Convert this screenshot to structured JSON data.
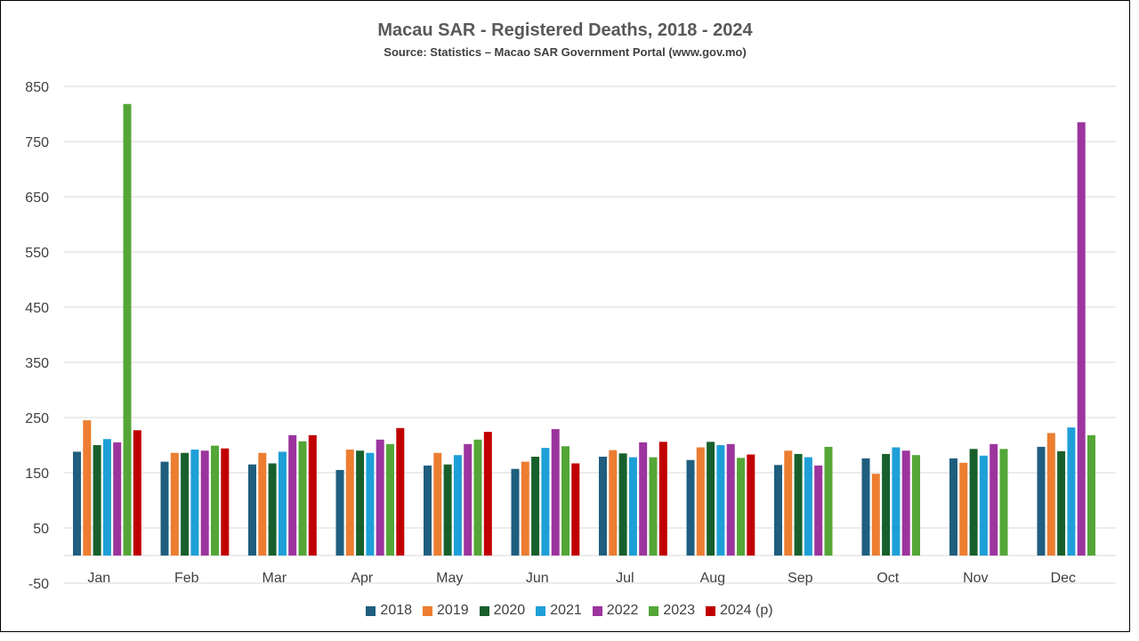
{
  "chart_data": {
    "type": "bar",
    "title": "Macau SAR - Registered Deaths, 2018 - 2024",
    "subtitle": "Source: Statistics – Macao SAR Government Portal (www.gov.mo)",
    "categories": [
      "Jan",
      "Feb",
      "Mar",
      "Apr",
      "May",
      "Jun",
      "Jul",
      "Aug",
      "Sep",
      "Oct",
      "Nov",
      "Dec"
    ],
    "ylim": [
      -50,
      850
    ],
    "yticks": [
      -50,
      50,
      150,
      250,
      350,
      450,
      550,
      650,
      750,
      850
    ],
    "grid": true,
    "legend_position": "bottom",
    "series": [
      {
        "name": "2018",
        "color": "#1f5e7e",
        "values": [
          188,
          170,
          165,
          155,
          163,
          157,
          179,
          173,
          164,
          176,
          176,
          197
        ]
      },
      {
        "name": "2019",
        "color": "#ec7d31",
        "values": [
          245,
          186,
          186,
          192,
          186,
          170,
          191,
          196,
          190,
          148,
          168,
          222
        ]
      },
      {
        "name": "2020",
        "color": "#17602c",
        "values": [
          200,
          186,
          167,
          190,
          165,
          179,
          185,
          206,
          184,
          184,
          193,
          189
        ]
      },
      {
        "name": "2021",
        "color": "#1e9fd8",
        "values": [
          211,
          192,
          188,
          186,
          182,
          195,
          178,
          200,
          178,
          196,
          181,
          232
        ]
      },
      {
        "name": "2022",
        "color": "#9c349e",
        "values": [
          205,
          190,
          218,
          210,
          202,
          229,
          205,
          202,
          163,
          190,
          202,
          785
        ]
      },
      {
        "name": "2023",
        "color": "#54a637",
        "values": [
          818,
          199,
          207,
          202,
          210,
          198,
          178,
          177,
          197,
          182,
          193,
          218
        ]
      },
      {
        "name": "2024 (p)",
        "color": "#c00000",
        "values": [
          227,
          194,
          218,
          231,
          224,
          167,
          206,
          183,
          null,
          null,
          null,
          null
        ]
      }
    ]
  }
}
